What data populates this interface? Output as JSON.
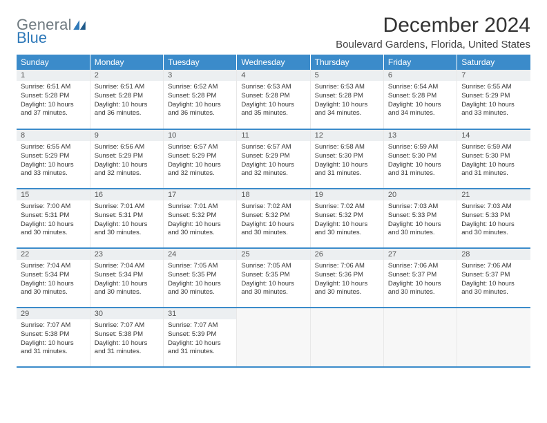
{
  "logo": {
    "text1": "General",
    "text2": "Blue"
  },
  "title": "December 2024",
  "location": "Boulevard Gardens, Florida, United States",
  "colors": {
    "header_bg": "#3b8bca",
    "header_text": "#ffffff",
    "daynum_bg": "#eceff1",
    "row_divider": "#3b8bca",
    "logo_gray": "#6f7a80",
    "logo_blue": "#2f79b9"
  },
  "day_labels": [
    "Sunday",
    "Monday",
    "Tuesday",
    "Wednesday",
    "Thursday",
    "Friday",
    "Saturday"
  ],
  "weeks": [
    [
      {
        "n": "1",
        "sr": "6:51 AM",
        "ss": "5:28 PM",
        "dl": "10 hours and 37 minutes."
      },
      {
        "n": "2",
        "sr": "6:51 AM",
        "ss": "5:28 PM",
        "dl": "10 hours and 36 minutes."
      },
      {
        "n": "3",
        "sr": "6:52 AM",
        "ss": "5:28 PM",
        "dl": "10 hours and 36 minutes."
      },
      {
        "n": "4",
        "sr": "6:53 AM",
        "ss": "5:28 PM",
        "dl": "10 hours and 35 minutes."
      },
      {
        "n": "5",
        "sr": "6:53 AM",
        "ss": "5:28 PM",
        "dl": "10 hours and 34 minutes."
      },
      {
        "n": "6",
        "sr": "6:54 AM",
        "ss": "5:28 PM",
        "dl": "10 hours and 34 minutes."
      },
      {
        "n": "7",
        "sr": "6:55 AM",
        "ss": "5:29 PM",
        "dl": "10 hours and 33 minutes."
      }
    ],
    [
      {
        "n": "8",
        "sr": "6:55 AM",
        "ss": "5:29 PM",
        "dl": "10 hours and 33 minutes."
      },
      {
        "n": "9",
        "sr": "6:56 AM",
        "ss": "5:29 PM",
        "dl": "10 hours and 32 minutes."
      },
      {
        "n": "10",
        "sr": "6:57 AM",
        "ss": "5:29 PM",
        "dl": "10 hours and 32 minutes."
      },
      {
        "n": "11",
        "sr": "6:57 AM",
        "ss": "5:29 PM",
        "dl": "10 hours and 32 minutes."
      },
      {
        "n": "12",
        "sr": "6:58 AM",
        "ss": "5:30 PM",
        "dl": "10 hours and 31 minutes."
      },
      {
        "n": "13",
        "sr": "6:59 AM",
        "ss": "5:30 PM",
        "dl": "10 hours and 31 minutes."
      },
      {
        "n": "14",
        "sr": "6:59 AM",
        "ss": "5:30 PM",
        "dl": "10 hours and 31 minutes."
      }
    ],
    [
      {
        "n": "15",
        "sr": "7:00 AM",
        "ss": "5:31 PM",
        "dl": "10 hours and 30 minutes."
      },
      {
        "n": "16",
        "sr": "7:01 AM",
        "ss": "5:31 PM",
        "dl": "10 hours and 30 minutes."
      },
      {
        "n": "17",
        "sr": "7:01 AM",
        "ss": "5:32 PM",
        "dl": "10 hours and 30 minutes."
      },
      {
        "n": "18",
        "sr": "7:02 AM",
        "ss": "5:32 PM",
        "dl": "10 hours and 30 minutes."
      },
      {
        "n": "19",
        "sr": "7:02 AM",
        "ss": "5:32 PM",
        "dl": "10 hours and 30 minutes."
      },
      {
        "n": "20",
        "sr": "7:03 AM",
        "ss": "5:33 PM",
        "dl": "10 hours and 30 minutes."
      },
      {
        "n": "21",
        "sr": "7:03 AM",
        "ss": "5:33 PM",
        "dl": "10 hours and 30 minutes."
      }
    ],
    [
      {
        "n": "22",
        "sr": "7:04 AM",
        "ss": "5:34 PM",
        "dl": "10 hours and 30 minutes."
      },
      {
        "n": "23",
        "sr": "7:04 AM",
        "ss": "5:34 PM",
        "dl": "10 hours and 30 minutes."
      },
      {
        "n": "24",
        "sr": "7:05 AM",
        "ss": "5:35 PM",
        "dl": "10 hours and 30 minutes."
      },
      {
        "n": "25",
        "sr": "7:05 AM",
        "ss": "5:35 PM",
        "dl": "10 hours and 30 minutes."
      },
      {
        "n": "26",
        "sr": "7:06 AM",
        "ss": "5:36 PM",
        "dl": "10 hours and 30 minutes."
      },
      {
        "n": "27",
        "sr": "7:06 AM",
        "ss": "5:37 PM",
        "dl": "10 hours and 30 minutes."
      },
      {
        "n": "28",
        "sr": "7:06 AM",
        "ss": "5:37 PM",
        "dl": "10 hours and 30 minutes."
      }
    ],
    [
      {
        "n": "29",
        "sr": "7:07 AM",
        "ss": "5:38 PM",
        "dl": "10 hours and 31 minutes."
      },
      {
        "n": "30",
        "sr": "7:07 AM",
        "ss": "5:38 PM",
        "dl": "10 hours and 31 minutes."
      },
      {
        "n": "31",
        "sr": "7:07 AM",
        "ss": "5:39 PM",
        "dl": "10 hours and 31 minutes."
      },
      null,
      null,
      null,
      null
    ]
  ],
  "labels": {
    "sunrise": "Sunrise:",
    "sunset": "Sunset:",
    "daylight": "Daylight:"
  }
}
